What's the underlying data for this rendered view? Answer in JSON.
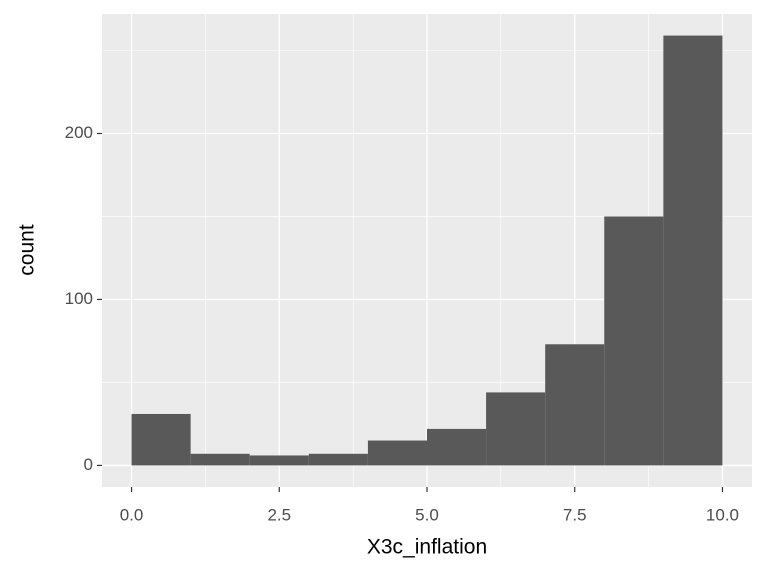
{
  "chart_data": {
    "type": "histogram",
    "xlabel": "X3c_inflation",
    "ylabel": "count",
    "bins": [
      0,
      1,
      2,
      3,
      4,
      5,
      6,
      7,
      8,
      9,
      10
    ],
    "counts": [
      31,
      7,
      6,
      7,
      15,
      22,
      44,
      73,
      150,
      259
    ],
    "color": "#595959",
    "xlim": [
      -0.5,
      10.5
    ],
    "xticks": [
      {
        "value": 0,
        "label": "0.0"
      },
      {
        "value": 2.5,
        "label": "2.5"
      },
      {
        "value": 5,
        "label": "5.0"
      },
      {
        "value": 7.5,
        "label": "7.5"
      },
      {
        "value": 10,
        "label": "10.0"
      }
    ],
    "ylim": [
      -13,
      272
    ],
    "yticks": [
      0,
      100,
      200
    ],
    "grid": true
  }
}
